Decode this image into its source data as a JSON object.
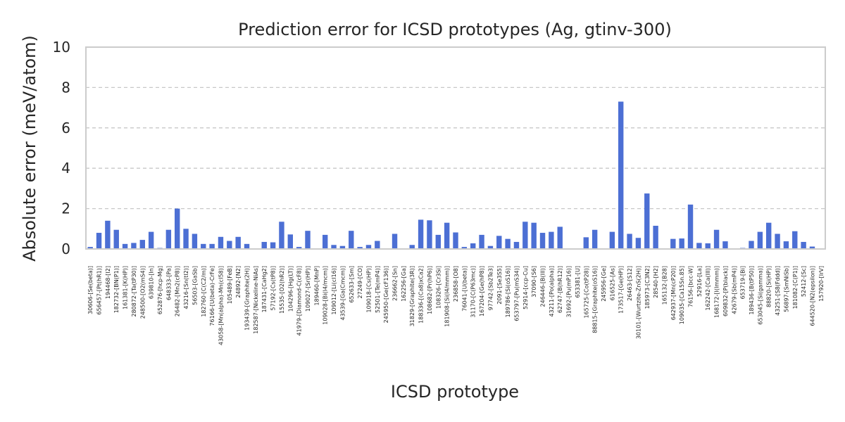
{
  "chart_data": {
    "type": "bar",
    "title": "Prediction error for ICSD prototypes (Ag, gtinv-300)",
    "xlabel": "ICSD prototype",
    "ylabel": "Absolute error (meV/atom)",
    "ylim": [
      0,
      10
    ],
    "yticks": [
      0,
      2,
      4,
      6,
      8,
      10
    ],
    "grid": "y-dashed",
    "bar_color": "#4c6fd4",
    "categories": [
      "30606-[Se(beta)]",
      "656457-[Pt(hR1)]",
      "194468-[I2]",
      "182732-[BN(P1)]",
      "161381-[K(HP)]",
      "280872-[Ta(tP30)]",
      "248500-[O2(mS4)]",
      "639810-[In]",
      "652876-[hcp-Mg]",
      "648333-[Pa]",
      "26482-[Mn2(cP8)]",
      "43216-[Sn(tI2)]",
      "56503-[GaSb]",
      "182760-[C(C2/m)]",
      "76166-[U(beta)-CrFe]",
      "43058-[Mn(alpha)-Mn(cI58)]",
      "105489-[FeB]",
      "24892-[N2]",
      "193439-[Graphite(2H)]",
      "182587-[Nickeline-NiAs]",
      "187431-[CaHg2]",
      "57192-[Cs(tP8)]",
      "15535-[O2(hR2)]",
      "104296-[Hg(LT)]",
      "41979-[Diamond-C(cF8)]",
      "109027-[Sr(HP)]",
      "189460-[MnP]",
      "109028-[Bi(I4/mcm)]",
      "109012-[Li(cI16)]",
      "43539-[Ga(Cmcm)]",
      "652633-[Sm]",
      "27249-[CO]",
      "109018-[Cs(HP)]",
      "52501-[Te(mP4)]",
      "245950-[Ge(cF136)]",
      "236662-[Sn]",
      "162256-[Ga]",
      "31829-[Graphite(3R)]",
      "188336-[(Ca8)xCa2]",
      "108682-[Pr(hP6)]",
      "108326-[Cr3Si]",
      "181908-[Si(I4/mmm)]",
      "236858-[O8]",
      "76041-[U(beta)]",
      "31170-[C(P63mc)]",
      "167204-[Ge(hP8)]",
      "97742-[Sb2Te3]",
      "2091-[Se3S5]",
      "189786-[Si(oS16)]",
      "653797-[Pu(mS34)]",
      "52914-[ccp-Cu]",
      "37090-[S6]",
      "246446-[B(III)]",
      "43211-[Po(alpha)]",
      "62747-[B(hR12)]",
      "31692-[Pu(mP16)]",
      "653381-[U]",
      "165725-[Co(tP28)]",
      "88815-[Graphite(oS16)]",
      "245956-[Ge]",
      "616525-[As]",
      "173517-[Ge(HP)]",
      "26463-[S12]",
      "30101-[Wurtzite-ZnS(2H)]",
      "185973-[C3N2]",
      "28540-[H2]",
      "165132-[B28]",
      "642937-[Mn(cP20)]",
      "109035-[Ca15Sn.85]",
      "76156-[bcc-W]",
      "52916-[La]",
      "162242-[Ca(III)]",
      "168172-[I(Immm)]",
      "609832-[P(black)]",
      "42679-[Sb(mP4)]",
      "653719-[Bi]",
      "189436-[B(tP50)]",
      "653045-[Si(gamma)]",
      "88820-[Si(HP)]",
      "43251-[S8(Fddd)]",
      "56897-[SmNiSb]",
      "181082-[C(P1)]",
      "52412-[Sc]",
      "644520-[N2(epsilon)]",
      "157920-[IrV]"
    ],
    "values": [
      0.1,
      0.8,
      1.4,
      0.95,
      0.25,
      0.3,
      0.45,
      0.85,
      0.05,
      0.95,
      2.0,
      1.0,
      0.75,
      0.25,
      0.25,
      0.6,
      0.4,
      0.6,
      0.25,
      0.0,
      0.35,
      0.33,
      1.35,
      0.72,
      0.1,
      0.9,
      0.0,
      0.7,
      0.2,
      0.15,
      0.9,
      0.1,
      0.2,
      0.4,
      0.0,
      0.75,
      0.0,
      0.2,
      1.45,
      1.42,
      0.7,
      1.3,
      0.82,
      0.1,
      0.28,
      0.7,
      0.15,
      0.65,
      0.5,
      0.35,
      1.35,
      1.3,
      0.8,
      0.85,
      1.1,
      0.0,
      0.0,
      0.58,
      0.95,
      0.0,
      0.85,
      7.3,
      0.75,
      0.55,
      2.75,
      1.15,
      0.0,
      0.5,
      0.52,
      2.2,
      0.3,
      0.28,
      0.95,
      0.38,
      0.0,
      0.05,
      0.4,
      0.85,
      1.3,
      0.75,
      0.38,
      0.88,
      0.35,
      0.12,
      0.0
    ]
  }
}
